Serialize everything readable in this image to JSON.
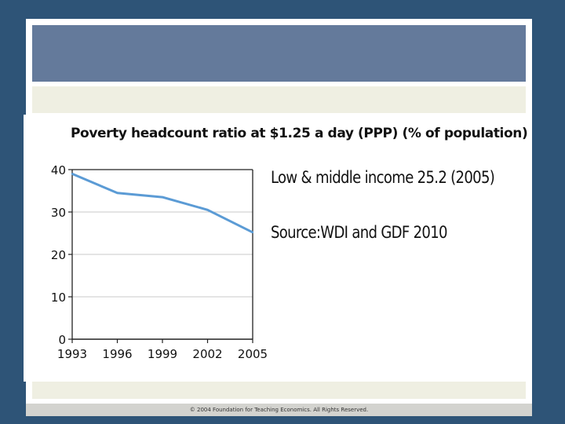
{
  "footer": {
    "copyright": "© 2004 Foundation for Teaching Economics. All Rights Reserved."
  },
  "notes": {
    "line1": "Low & middle income 25.2 (2005)",
    "line2": "Source:WDI and GDF 2010"
  },
  "colors": {
    "background": "#2e5477",
    "header_band": "#647a9b",
    "cream": "#efefe2",
    "line": "#5b9bd5"
  },
  "chart_data": {
    "type": "line",
    "title": "Poverty headcount ratio at $1.25 a day (PPP) (% of population)",
    "x": [
      1993,
      1996,
      1999,
      2002,
      2005
    ],
    "xticks": [
      "1993",
      "1996",
      "1999",
      "2002",
      "2005"
    ],
    "yticks": [
      "0",
      "10",
      "20",
      "30",
      "40"
    ],
    "series": [
      {
        "name": "Low & middle income",
        "values": [
          39,
          34.5,
          33.5,
          30.5,
          25.2
        ]
      }
    ],
    "ylim": [
      0,
      40
    ],
    "xlabel": "",
    "ylabel": ""
  }
}
